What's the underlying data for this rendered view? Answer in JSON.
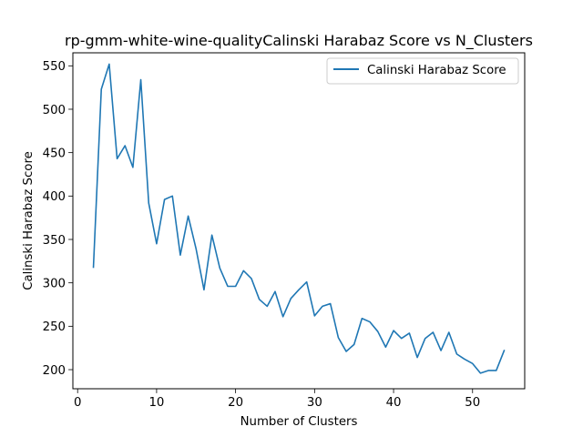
{
  "chart_data": {
    "type": "line",
    "title": "rp-gmm-white-wine-qualityCalinski Harabaz Score vs N_Clusters",
    "xlabel": "Number of Clusters",
    "ylabel": "Calinski Harabaz Score",
    "xlim": [
      -0.6,
      56.6
    ],
    "ylim": [
      178,
      565
    ],
    "xticks": [
      0,
      10,
      20,
      30,
      40,
      50
    ],
    "yticks": [
      200,
      250,
      300,
      350,
      400,
      450,
      500,
      550
    ],
    "grid": false,
    "legend_position": "top-right",
    "series": [
      {
        "name": "Calinski Harabaz Score",
        "color": "#1f77b4",
        "x": [
          2,
          3,
          4,
          5,
          6,
          7,
          8,
          9,
          10,
          11,
          12,
          13,
          14,
          15,
          16,
          17,
          18,
          19,
          20,
          21,
          22,
          23,
          24,
          25,
          26,
          27,
          28,
          29,
          30,
          31,
          32,
          33,
          34,
          35,
          36,
          37,
          38,
          39,
          40,
          41,
          42,
          43,
          44,
          45,
          46,
          47,
          48,
          49,
          50,
          51,
          52,
          53,
          54
        ],
        "y": [
          318,
          523,
          552,
          443,
          458,
          433,
          534,
          392,
          345,
          396,
          400,
          332,
          377,
          339,
          292,
          355,
          317,
          296,
          296,
          314,
          305,
          281,
          273,
          290,
          261,
          282,
          292,
          301,
          262,
          273,
          276,
          237,
          221,
          229,
          259,
          255,
          244,
          226,
          245,
          236,
          242,
          214,
          236,
          243,
          222,
          243,
          218,
          212,
          207,
          196,
          199,
          199,
          222
        ]
      }
    ]
  }
}
